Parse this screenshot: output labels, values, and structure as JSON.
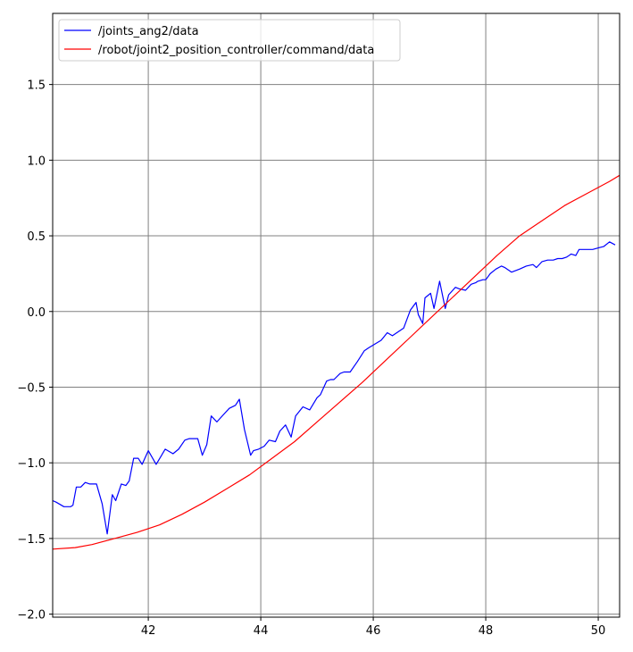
{
  "chart_data": {
    "type": "line",
    "title": "",
    "xlabel": "",
    "ylabel": "",
    "xlim": [
      40.3,
      50.38
    ],
    "ylim": [
      -2.02,
      1.97
    ],
    "xticks": [
      42,
      44,
      46,
      48,
      50
    ],
    "yticks": [
      -2.0,
      -1.5,
      -1.0,
      -0.5,
      0.0,
      0.5,
      1.0,
      1.5
    ],
    "xtick_labels": [
      "42",
      "44",
      "46",
      "48",
      "50"
    ],
    "ytick_labels": [
      "−2.0",
      "−1.5",
      "−1.0",
      "−0.5",
      "0.0",
      "0.5",
      "1.0",
      "1.5"
    ],
    "grid": true,
    "legend": "top-left",
    "series": [
      {
        "name": "/joints_ang2/data",
        "color": "#0000ff",
        "x": [
          40.3,
          40.36,
          40.5,
          40.62,
          40.66,
          40.72,
          40.8,
          40.88,
          40.96,
          41.0,
          41.08,
          41.18,
          41.27,
          41.36,
          41.42,
          41.52,
          41.6,
          41.66,
          41.74,
          41.82,
          41.89,
          42.0,
          42.14,
          42.22,
          42.3,
          42.44,
          42.54,
          42.65,
          42.73,
          42.88,
          42.96,
          43.04,
          43.12,
          43.22,
          43.34,
          43.44,
          43.55,
          43.62,
          43.71,
          43.82,
          43.87,
          43.96,
          44.06,
          44.15,
          44.26,
          44.34,
          44.44,
          44.54,
          44.62,
          44.75,
          44.87,
          45.0,
          45.06,
          45.17,
          45.24,
          45.3,
          45.41,
          45.48,
          45.59,
          45.72,
          45.84,
          45.92,
          46.14,
          46.25,
          46.34,
          46.54,
          46.66,
          46.76,
          46.8,
          46.88,
          46.92,
          47.02,
          47.08,
          47.18,
          47.28,
          47.34,
          47.46,
          47.53,
          47.64,
          47.74,
          47.82,
          47.86,
          47.95,
          48.0,
          48.08,
          48.18,
          48.28,
          48.34,
          48.46,
          48.6,
          48.72,
          48.84,
          48.9,
          49.0,
          49.1,
          49.2,
          49.28,
          49.36,
          49.44,
          49.52,
          49.6,
          49.66,
          49.76,
          49.9,
          50.0,
          50.1,
          50.2,
          50.3
        ],
        "y": [
          -1.25,
          -1.26,
          -1.29,
          -1.29,
          -1.28,
          -1.16,
          -1.16,
          -1.13,
          -1.14,
          -1.14,
          -1.14,
          -1.27,
          -1.47,
          -1.21,
          -1.25,
          -1.14,
          -1.15,
          -1.12,
          -0.97,
          -0.97,
          -1.01,
          -0.92,
          -1.01,
          -0.96,
          -0.91,
          -0.94,
          -0.91,
          -0.85,
          -0.84,
          -0.84,
          -0.95,
          -0.88,
          -0.69,
          -0.73,
          -0.68,
          -0.64,
          -0.62,
          -0.58,
          -0.78,
          -0.95,
          -0.92,
          -0.91,
          -0.89,
          -0.85,
          -0.86,
          -0.79,
          -0.75,
          -0.83,
          -0.69,
          -0.63,
          -0.65,
          -0.57,
          -0.55,
          -0.46,
          -0.45,
          -0.45,
          -0.41,
          -0.4,
          -0.4,
          -0.33,
          -0.26,
          -0.24,
          -0.19,
          -0.14,
          -0.16,
          -0.11,
          0.01,
          0.06,
          -0.02,
          -0.08,
          0.09,
          0.12,
          0.02,
          0.2,
          0.02,
          0.11,
          0.16,
          0.15,
          0.14,
          0.18,
          0.19,
          0.2,
          0.21,
          0.21,
          0.25,
          0.28,
          0.3,
          0.29,
          0.26,
          0.28,
          0.3,
          0.31,
          0.29,
          0.33,
          0.34,
          0.34,
          0.35,
          0.35,
          0.36,
          0.38,
          0.37,
          0.41,
          0.41,
          0.41,
          0.42,
          0.43,
          0.46,
          0.44
        ]
      },
      {
        "name": "/robot/joint2_position_controller/command/data",
        "color": "#ff0000",
        "x": [
          40.3,
          40.7,
          41.0,
          41.4,
          41.8,
          42.2,
          42.6,
          43.0,
          43.4,
          43.8,
          44.2,
          44.6,
          45.0,
          45.4,
          45.8,
          46.2,
          46.6,
          47.0,
          47.4,
          47.8,
          48.2,
          48.6,
          49.0,
          49.4,
          49.8,
          50.2,
          50.38
        ],
        "y": [
          -1.57,
          -1.56,
          -1.54,
          -1.5,
          -1.46,
          -1.41,
          -1.34,
          -1.26,
          -1.17,
          -1.08,
          -0.97,
          -0.86,
          -0.73,
          -0.6,
          -0.47,
          -0.33,
          -0.19,
          -0.05,
          0.09,
          0.23,
          0.37,
          0.5,
          0.6,
          0.7,
          0.78,
          0.86,
          0.9
        ]
      }
    ]
  }
}
